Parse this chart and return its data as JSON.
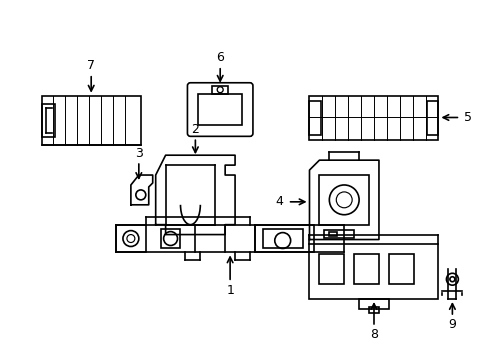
{
  "title": "",
  "background_color": "#ffffff",
  "line_color": "#000000",
  "line_width": 1.2,
  "parts": {
    "part1_label": "1",
    "part2_label": "2",
    "part3_label": "3",
    "part4_label": "4",
    "part5_label": "5",
    "part6_label": "6",
    "part7_label": "7",
    "part8_label": "8",
    "part9_label": "9"
  },
  "figsize": [
    4.89,
    3.6
  ],
  "dpi": 100
}
